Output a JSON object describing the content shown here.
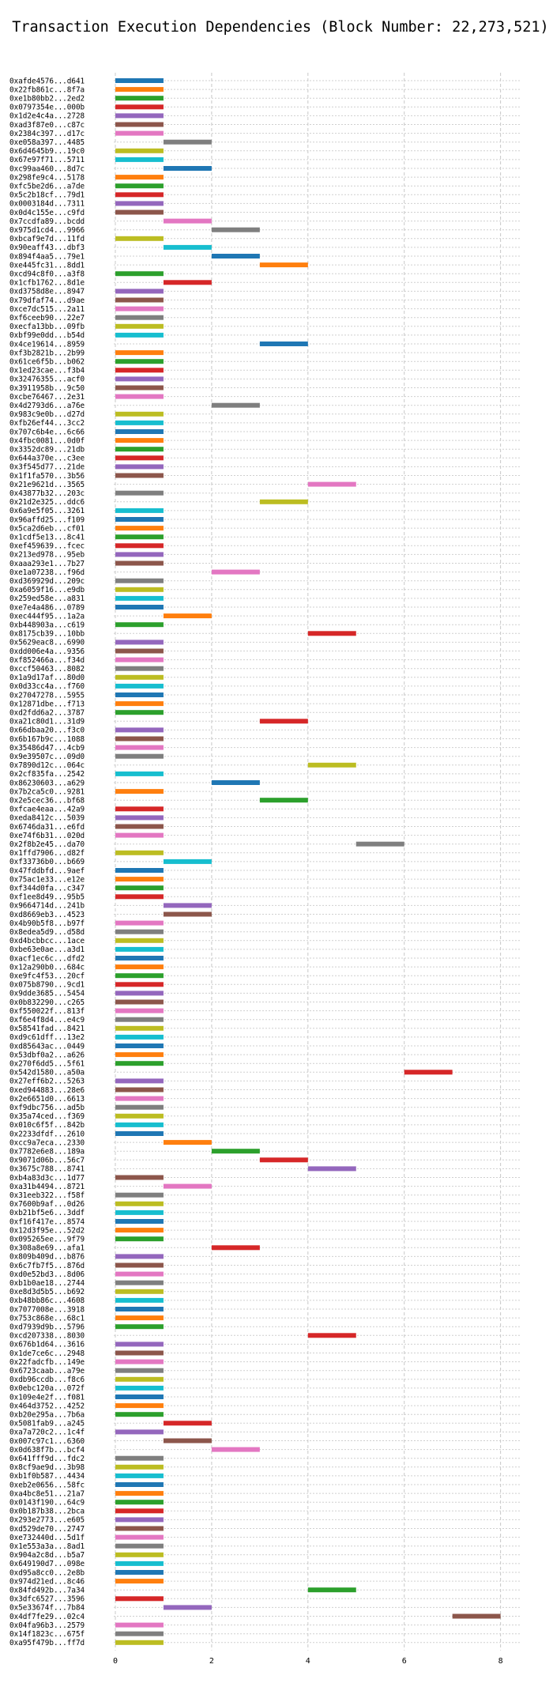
{
  "chart_data": {
    "type": "bar",
    "orientation": "horizontal",
    "title": "Transaction Execution Dependencies (Block Number: 22,273,521)",
    "xlabel": "",
    "ylabel": "",
    "xlim": [
      0,
      8.4
    ],
    "xticks": [
      0,
      2,
      4,
      6,
      8
    ],
    "grid": true,
    "grid_style": "dashed",
    "legend": false,
    "palette": [
      "#1f77b4",
      "#ff7f0e",
      "#2ca02c",
      "#d62728",
      "#9467bd",
      "#8c564b",
      "#e377c2",
      "#7f7f7f",
      "#bcbd22",
      "#17becf"
    ],
    "transactions": [
      {
        "label": "0xafde4576...d641",
        "start": 0,
        "end": 1
      },
      {
        "label": "0x22fb861c...8f7a",
        "start": 0,
        "end": 1
      },
      {
        "label": "0xe1b80bb2...2ed2",
        "start": 0,
        "end": 1
      },
      {
        "label": "0x0797354e...000b",
        "start": 0,
        "end": 1
      },
      {
        "label": "0x1d2e4c4a...2728",
        "start": 0,
        "end": 1
      },
      {
        "label": "0xad3f87e0...c87c",
        "start": 0,
        "end": 1
      },
      {
        "label": "0x2384c397...d17c",
        "start": 0,
        "end": 1
      },
      {
        "label": "0xe058a397...4485",
        "start": 1,
        "end": 2
      },
      {
        "label": "0x6d4645b9...19c0",
        "start": 0,
        "end": 1
      },
      {
        "label": "0x67e97f71...5711",
        "start": 0,
        "end": 1
      },
      {
        "label": "0xc99aa460...8d7c",
        "start": 1,
        "end": 2
      },
      {
        "label": "0x298fe9c4...5178",
        "start": 0,
        "end": 1
      },
      {
        "label": "0xfc5be2d6...a7de",
        "start": 0,
        "end": 1
      },
      {
        "label": "0x5c2b18cf...79d1",
        "start": 0,
        "end": 1
      },
      {
        "label": "0x0003184d...7311",
        "start": 0,
        "end": 1
      },
      {
        "label": "0x0d4c155e...c9fd",
        "start": 0,
        "end": 1
      },
      {
        "label": "0x7ccdfa89...bcdd",
        "start": 1,
        "end": 2
      },
      {
        "label": "0x975d1cd4...9966",
        "start": 2,
        "end": 3
      },
      {
        "label": "0xbcaf9e7d...11fd",
        "start": 0,
        "end": 1
      },
      {
        "label": "0x90eaff43...dbf3",
        "start": 1,
        "end": 2
      },
      {
        "label": "0x894f4aa5...79e1",
        "start": 2,
        "end": 3
      },
      {
        "label": "0xe445fc31...8dd1",
        "start": 3,
        "end": 4
      },
      {
        "label": "0xcd94c8f0...a3f8",
        "start": 0,
        "end": 1
      },
      {
        "label": "0x1cfb1762...8d1e",
        "start": 1,
        "end": 2
      },
      {
        "label": "0xd3758d8e...8947",
        "start": 0,
        "end": 1
      },
      {
        "label": "0x79dfaf74...d9ae",
        "start": 0,
        "end": 1
      },
      {
        "label": "0xce7dc515...2a11",
        "start": 0,
        "end": 1
      },
      {
        "label": "0xf6ceeb90...22e7",
        "start": 0,
        "end": 1
      },
      {
        "label": "0xecfa13bb...09fb",
        "start": 0,
        "end": 1
      },
      {
        "label": "0xbf99e0dd...b54d",
        "start": 0,
        "end": 1
      },
      {
        "label": "0x4ce19614...8959",
        "start": 3,
        "end": 4
      },
      {
        "label": "0xf3b2821b...2b99",
        "start": 0,
        "end": 1
      },
      {
        "label": "0x61ce6f5b...b062",
        "start": 0,
        "end": 1
      },
      {
        "label": "0x1ed23cae...f3b4",
        "start": 0,
        "end": 1
      },
      {
        "label": "0x32476355...acf0",
        "start": 0,
        "end": 1
      },
      {
        "label": "0x3911958b...9c50",
        "start": 0,
        "end": 1
      },
      {
        "label": "0xcbe76467...2e31",
        "start": 0,
        "end": 1
      },
      {
        "label": "0x4d2793d6...a76e",
        "start": 2,
        "end": 3
      },
      {
        "label": "0x983c9e0b...d27d",
        "start": 0,
        "end": 1
      },
      {
        "label": "0xfb26ef44...3cc2",
        "start": 0,
        "end": 1
      },
      {
        "label": "0x707c6b4e...6c66",
        "start": 0,
        "end": 1
      },
      {
        "label": "0x4fbc0081...0d0f",
        "start": 0,
        "end": 1
      },
      {
        "label": "0x3352dc89...21db",
        "start": 0,
        "end": 1
      },
      {
        "label": "0x644a370e...c3ee",
        "start": 0,
        "end": 1
      },
      {
        "label": "0x3f545d77...21de",
        "start": 0,
        "end": 1
      },
      {
        "label": "0x1f1fa570...3b56",
        "start": 0,
        "end": 1
      },
      {
        "label": "0x21e9621d...3565",
        "start": 4,
        "end": 5
      },
      {
        "label": "0x43877b32...203c",
        "start": 0,
        "end": 1
      },
      {
        "label": "0x21d2e325...ddc6",
        "start": 3,
        "end": 4
      },
      {
        "label": "0x6a9e5f05...3261",
        "start": 0,
        "end": 1
      },
      {
        "label": "0x96affd25...f109",
        "start": 0,
        "end": 1
      },
      {
        "label": "0x5ca2d6eb...cf01",
        "start": 0,
        "end": 1
      },
      {
        "label": "0x1cdf5e13...8c41",
        "start": 0,
        "end": 1
      },
      {
        "label": "0xef459639...fcec",
        "start": 0,
        "end": 1
      },
      {
        "label": "0x213ed978...95eb",
        "start": 0,
        "end": 1
      },
      {
        "label": "0xaaa293e1...7b27",
        "start": 0,
        "end": 1
      },
      {
        "label": "0xe1a07238...f96d",
        "start": 2,
        "end": 3
      },
      {
        "label": "0xd369929d...209c",
        "start": 0,
        "end": 1
      },
      {
        "label": "0xa6059f16...e9db",
        "start": 0,
        "end": 1
      },
      {
        "label": "0x259ed58e...a831",
        "start": 0,
        "end": 1
      },
      {
        "label": "0xe7e4a486...0789",
        "start": 0,
        "end": 1
      },
      {
        "label": "0xec444f95...1a2a",
        "start": 1,
        "end": 2
      },
      {
        "label": "0xb448903a...c619",
        "start": 0,
        "end": 1
      },
      {
        "label": "0x8175cb39...10bb",
        "start": 4,
        "end": 5
      },
      {
        "label": "0x5629eac8...6990",
        "start": 0,
        "end": 1
      },
      {
        "label": "0xdd006e4a...9356",
        "start": 0,
        "end": 1
      },
      {
        "label": "0xf852466a...f34d",
        "start": 0,
        "end": 1
      },
      {
        "label": "0xccf50463...8082",
        "start": 0,
        "end": 1
      },
      {
        "label": "0x1a9d17af...80d0",
        "start": 0,
        "end": 1
      },
      {
        "label": "0x0d33cc4a...f760",
        "start": 0,
        "end": 1
      },
      {
        "label": "0x27047278...5955",
        "start": 0,
        "end": 1
      },
      {
        "label": "0x12871dbe...f713",
        "start": 0,
        "end": 1
      },
      {
        "label": "0xd2fdd6a2...3787",
        "start": 0,
        "end": 1
      },
      {
        "label": "0xa21c80d1...31d9",
        "start": 3,
        "end": 4
      },
      {
        "label": "0x66dbaa20...f3c0",
        "start": 0,
        "end": 1
      },
      {
        "label": "0x6b167b9c...1088",
        "start": 0,
        "end": 1
      },
      {
        "label": "0x35486d47...4cb9",
        "start": 0,
        "end": 1
      },
      {
        "label": "0x9e39507c...09d0",
        "start": 0,
        "end": 1
      },
      {
        "label": "0x7890d12c...064c",
        "start": 4,
        "end": 5
      },
      {
        "label": "0x2cf835fa...2542",
        "start": 0,
        "end": 1
      },
      {
        "label": "0x86230603...a629",
        "start": 2,
        "end": 3
      },
      {
        "label": "0x7b2ca5c0...9281",
        "start": 0,
        "end": 1
      },
      {
        "label": "0x2e5cec36...bf68",
        "start": 3,
        "end": 4
      },
      {
        "label": "0xfcae4eaa...42a9",
        "start": 0,
        "end": 1
      },
      {
        "label": "0xeda8412c...5039",
        "start": 0,
        "end": 1
      },
      {
        "label": "0x6746da31...e6fd",
        "start": 0,
        "end": 1
      },
      {
        "label": "0xe74f6b31...020d",
        "start": 0,
        "end": 1
      },
      {
        "label": "0x2f8b2e45...da70",
        "start": 5,
        "end": 6
      },
      {
        "label": "0x1ffd7906...d82f",
        "start": 0,
        "end": 1
      },
      {
        "label": "0xf33736b0...b669",
        "start": 1,
        "end": 2
      },
      {
        "label": "0x47fddbfd...9aef",
        "start": 0,
        "end": 1
      },
      {
        "label": "0x75ac1e33...e12e",
        "start": 0,
        "end": 1
      },
      {
        "label": "0xf344d0fa...c347",
        "start": 0,
        "end": 1
      },
      {
        "label": "0xf1ee8d49...95b5",
        "start": 0,
        "end": 1
      },
      {
        "label": "0x9664714d...241b",
        "start": 1,
        "end": 2
      },
      {
        "label": "0xd8669eb3...4523",
        "start": 1,
        "end": 2
      },
      {
        "label": "0x4b90b5f8...b97f",
        "start": 0,
        "end": 1
      },
      {
        "label": "0x8edea5d9...d58d",
        "start": 0,
        "end": 1
      },
      {
        "label": "0xd4bcbbcc...1ace",
        "start": 0,
        "end": 1
      },
      {
        "label": "0xbe63e0ae...a3d1",
        "start": 0,
        "end": 1
      },
      {
        "label": "0xacf1ec6c...dfd2",
        "start": 0,
        "end": 1
      },
      {
        "label": "0x12a290b0...684c",
        "start": 0,
        "end": 1
      },
      {
        "label": "0xe9fc4f53...20cf",
        "start": 0,
        "end": 1
      },
      {
        "label": "0x075b8790...9cd1",
        "start": 0,
        "end": 1
      },
      {
        "label": "0x9dde3685...5454",
        "start": 0,
        "end": 1
      },
      {
        "label": "0x0b832290...c265",
        "start": 0,
        "end": 1
      },
      {
        "label": "0xf550022f...813f",
        "start": 0,
        "end": 1
      },
      {
        "label": "0xf6e4f8d4...e4c9",
        "start": 0,
        "end": 1
      },
      {
        "label": "0x58541fad...8421",
        "start": 0,
        "end": 1
      },
      {
        "label": "0xd9c61dff...13e2",
        "start": 0,
        "end": 1
      },
      {
        "label": "0xd85643ac...0449",
        "start": 0,
        "end": 1
      },
      {
        "label": "0x53dbf0a2...a626",
        "start": 0,
        "end": 1
      },
      {
        "label": "0x270f6dd5...5f61",
        "start": 0,
        "end": 1
      },
      {
        "label": "0x542d1580...a50a",
        "start": 6,
        "end": 7
      },
      {
        "label": "0x27eff6b2...5263",
        "start": 0,
        "end": 1
      },
      {
        "label": "0xed944883...28e6",
        "start": 0,
        "end": 1
      },
      {
        "label": "0x2e6651d0...6613",
        "start": 0,
        "end": 1
      },
      {
        "label": "0xf9dbc756...ad5b",
        "start": 0,
        "end": 1
      },
      {
        "label": "0x35a74ced...f369",
        "start": 0,
        "end": 1
      },
      {
        "label": "0x010c6f5f...842b",
        "start": 0,
        "end": 1
      },
      {
        "label": "0x2233dfdf...2610",
        "start": 0,
        "end": 1
      },
      {
        "label": "0xcc9a7eca...2330",
        "start": 1,
        "end": 2
      },
      {
        "label": "0x7782e6e8...189a",
        "start": 2,
        "end": 3
      },
      {
        "label": "0x9071d06b...56c7",
        "start": 3,
        "end": 4
      },
      {
        "label": "0x3675c788...8741",
        "start": 4,
        "end": 5
      },
      {
        "label": "0xb4a83d3c...1d77",
        "start": 0,
        "end": 1
      },
      {
        "label": "0xa31b4494...8721",
        "start": 1,
        "end": 2
      },
      {
        "label": "0x31eeb322...f58f",
        "start": 0,
        "end": 1
      },
      {
        "label": "0x7600b9af...0d26",
        "start": 0,
        "end": 1
      },
      {
        "label": "0xb21bf5e6...3ddf",
        "start": 0,
        "end": 1
      },
      {
        "label": "0xf16f417e...8574",
        "start": 0,
        "end": 1
      },
      {
        "label": "0x12d3f95e...52d2",
        "start": 0,
        "end": 1
      },
      {
        "label": "0x095265ee...9f79",
        "start": 0,
        "end": 1
      },
      {
        "label": "0x308a8e69...afa1",
        "start": 2,
        "end": 3
      },
      {
        "label": "0x809b409d...b876",
        "start": 0,
        "end": 1
      },
      {
        "label": "0x6c7fb7f5...876d",
        "start": 0,
        "end": 1
      },
      {
        "label": "0xd0e52bd3...8d06",
        "start": 0,
        "end": 1
      },
      {
        "label": "0xb1b0ae18...2744",
        "start": 0,
        "end": 1
      },
      {
        "label": "0xe8d3d5b5...b692",
        "start": 0,
        "end": 1
      },
      {
        "label": "0xb48bb86c...4608",
        "start": 0,
        "end": 1
      },
      {
        "label": "0x7077008e...3918",
        "start": 0,
        "end": 1
      },
      {
        "label": "0x753c868e...68c1",
        "start": 0,
        "end": 1
      },
      {
        "label": "0xd7939d9b...5796",
        "start": 0,
        "end": 1
      },
      {
        "label": "0xcd207338...8030",
        "start": 4,
        "end": 5
      },
      {
        "label": "0x676b1d64...3616",
        "start": 0,
        "end": 1
      },
      {
        "label": "0x1de7ce6c...2948",
        "start": 0,
        "end": 1
      },
      {
        "label": "0x22fadcfb...149e",
        "start": 0,
        "end": 1
      },
      {
        "label": "0x6723caab...a79e",
        "start": 0,
        "end": 1
      },
      {
        "label": "0xdb96ccdb...f8c6",
        "start": 0,
        "end": 1
      },
      {
        "label": "0x0ebc120a...072f",
        "start": 0,
        "end": 1
      },
      {
        "label": "0x109e4e2f...f081",
        "start": 0,
        "end": 1
      },
      {
        "label": "0x464d3752...4252",
        "start": 0,
        "end": 1
      },
      {
        "label": "0xb20e295a...7b6a",
        "start": 0,
        "end": 1
      },
      {
        "label": "0x5081fab9...a245",
        "start": 1,
        "end": 2
      },
      {
        "label": "0xa7a720c2...1c4f",
        "start": 0,
        "end": 1
      },
      {
        "label": "0x007c97c1...6360",
        "start": 1,
        "end": 2
      },
      {
        "label": "0x0d638f7b...bcf4",
        "start": 2,
        "end": 3
      },
      {
        "label": "0x641fff9d...fdc2",
        "start": 0,
        "end": 1
      },
      {
        "label": "0x8cf9ae9d...3b98",
        "start": 0,
        "end": 1
      },
      {
        "label": "0xb1f0b587...4434",
        "start": 0,
        "end": 1
      },
      {
        "label": "0xeb2e0656...58fc",
        "start": 0,
        "end": 1
      },
      {
        "label": "0xa4bc8e51...21a7",
        "start": 0,
        "end": 1
      },
      {
        "label": "0x0143f190...64c9",
        "start": 0,
        "end": 1
      },
      {
        "label": "0x0b187b38...2bca",
        "start": 0,
        "end": 1
      },
      {
        "label": "0x293e2773...e605",
        "start": 0,
        "end": 1
      },
      {
        "label": "0xd529de70...2747",
        "start": 0,
        "end": 1
      },
      {
        "label": "0xe732440d...5d1f",
        "start": 0,
        "end": 1
      },
      {
        "label": "0x1e553a3a...8ad1",
        "start": 0,
        "end": 1
      },
      {
        "label": "0x904a2c8d...b5a7",
        "start": 0,
        "end": 1
      },
      {
        "label": "0x649190d7...098e",
        "start": 0,
        "end": 1
      },
      {
        "label": "0xd95a8cc0...2e8b",
        "start": 0,
        "end": 1
      },
      {
        "label": "0x974d21ed...8c46",
        "start": 0,
        "end": 1
      },
      {
        "label": "0x84fd492b...7a34",
        "start": 4,
        "end": 5
      },
      {
        "label": "0x3dfc6527...3596",
        "start": 0,
        "end": 1
      },
      {
        "label": "0x5e33674f...7b84",
        "start": 1,
        "end": 2
      },
      {
        "label": "0x4df7fe29...02c4",
        "start": 7,
        "end": 8
      },
      {
        "label": "0x04fa96b3...2579",
        "start": 0,
        "end": 1
      },
      {
        "label": "0x14f1823c...675f",
        "start": 0,
        "end": 1
      },
      {
        "label": "0xa95f479b...ff7d",
        "start": 0,
        "end": 1
      }
    ]
  }
}
